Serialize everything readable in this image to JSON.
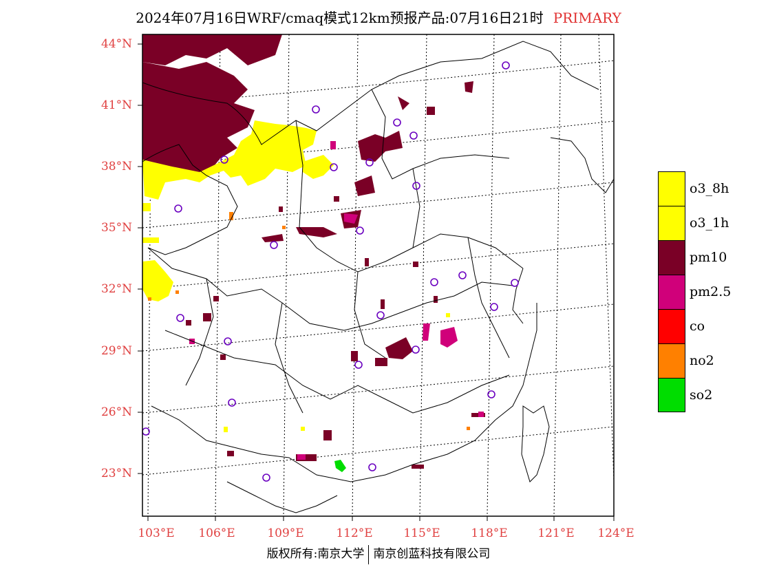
{
  "title": {
    "main": "2024年07月16日WRF/cmaq模式12km预报产品:07月16日21时",
    "tag": "PRIMARY"
  },
  "lat_labels": [
    "44°N",
    "41°N",
    "38°N",
    "35°N",
    "32°N",
    "29°N",
    "26°N",
    "23°N"
  ],
  "lon_labels": [
    "103°E",
    "106°E",
    "109°E",
    "112°E",
    "115°E",
    "118°E",
    "121°E",
    "124°E"
  ],
  "legend": [
    {
      "label": "o3_8h",
      "color": "#ffff00"
    },
    {
      "label": "o3_1h",
      "color": "#ffff00"
    },
    {
      "label": "pm10",
      "color": "#7a0026"
    },
    {
      "label": "pm2.5",
      "color": "#d0007a"
    },
    {
      "label": "co",
      "color": "#ff0000"
    },
    {
      "label": "no2",
      "color": "#ff8000"
    },
    {
      "label": "so2",
      "color": "#00dd00"
    }
  ],
  "footer": {
    "left": "版权所有:南京大学",
    "right": "南京创蓝科技有限公司"
  }
}
